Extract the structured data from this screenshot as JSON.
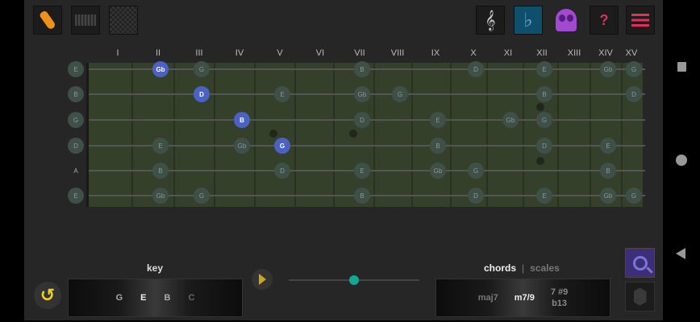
{
  "toolbar": {
    "left": [
      "guitar-icon",
      "piano-icon",
      "pattern-icon"
    ],
    "right": [
      "treble-clef-icon",
      "flat-icon",
      "skull-icon",
      "help-icon",
      "menu-icon"
    ],
    "flat_symbol": "♭",
    "help_symbol": "?",
    "clef_symbol": "𝄞",
    "accent": "#0e4f6b"
  },
  "fret_labels": [
    "I",
    "II",
    "III",
    "IV",
    "V",
    "VI",
    "VII",
    "VIII",
    "IX",
    "X",
    "XI",
    "XII",
    "XIII",
    "XIV",
    "XV"
  ],
  "strings": [
    {
      "open": "E",
      "notes": [
        [
          2,
          "Gb",
          true
        ],
        [
          3,
          "G"
        ],
        [
          7,
          "B"
        ],
        [
          10,
          "D"
        ],
        [
          12,
          "E"
        ],
        [
          14,
          "Gb"
        ],
        [
          15,
          "G"
        ]
      ]
    },
    {
      "open": "B",
      "notes": [
        [
          3,
          "D",
          true
        ],
        [
          5,
          "E"
        ],
        [
          7,
          "Gb"
        ],
        [
          8,
          "G"
        ],
        [
          12,
          "B"
        ],
        [
          15,
          "D"
        ]
      ]
    },
    {
      "open": "G",
      "notes": [
        [
          4,
          "B",
          true
        ],
        [
          7,
          "D"
        ],
        [
          9,
          "E"
        ],
        [
          11,
          "Gb"
        ],
        [
          12,
          "G"
        ]
      ]
    },
    {
      "open": "D",
      "notes": [
        [
          2,
          "E"
        ],
        [
          4,
          "Gb"
        ],
        [
          5,
          "G",
          true
        ],
        [
          9,
          "B"
        ],
        [
          12,
          "D"
        ],
        [
          14,
          "E"
        ]
      ]
    },
    {
      "open": "A",
      "open_plain": true,
      "notes": [
        [
          2,
          "B"
        ],
        [
          5,
          "D"
        ],
        [
          7,
          "E"
        ],
        [
          9,
          "Gb"
        ],
        [
          10,
          "G"
        ],
        [
          14,
          "B"
        ]
      ]
    },
    {
      "open": "E",
      "notes": [
        [
          2,
          "Gb"
        ],
        [
          3,
          "G"
        ],
        [
          7,
          "B"
        ],
        [
          10,
          "D"
        ],
        [
          12,
          "E"
        ],
        [
          14,
          "Gb"
        ],
        [
          15,
          "G"
        ]
      ]
    }
  ],
  "key": {
    "label": "key",
    "values": [
      "G",
      "E",
      "B",
      "C"
    ],
    "selected": "E"
  },
  "tempo_slider": {
    "value": 0.5
  },
  "chords": {
    "tab_chords": "chords",
    "separator": "|",
    "tab_scales": "scales",
    "values": [
      "maj7",
      "m7/9",
      "7 #9",
      "b13"
    ],
    "selected": "m7/9"
  }
}
